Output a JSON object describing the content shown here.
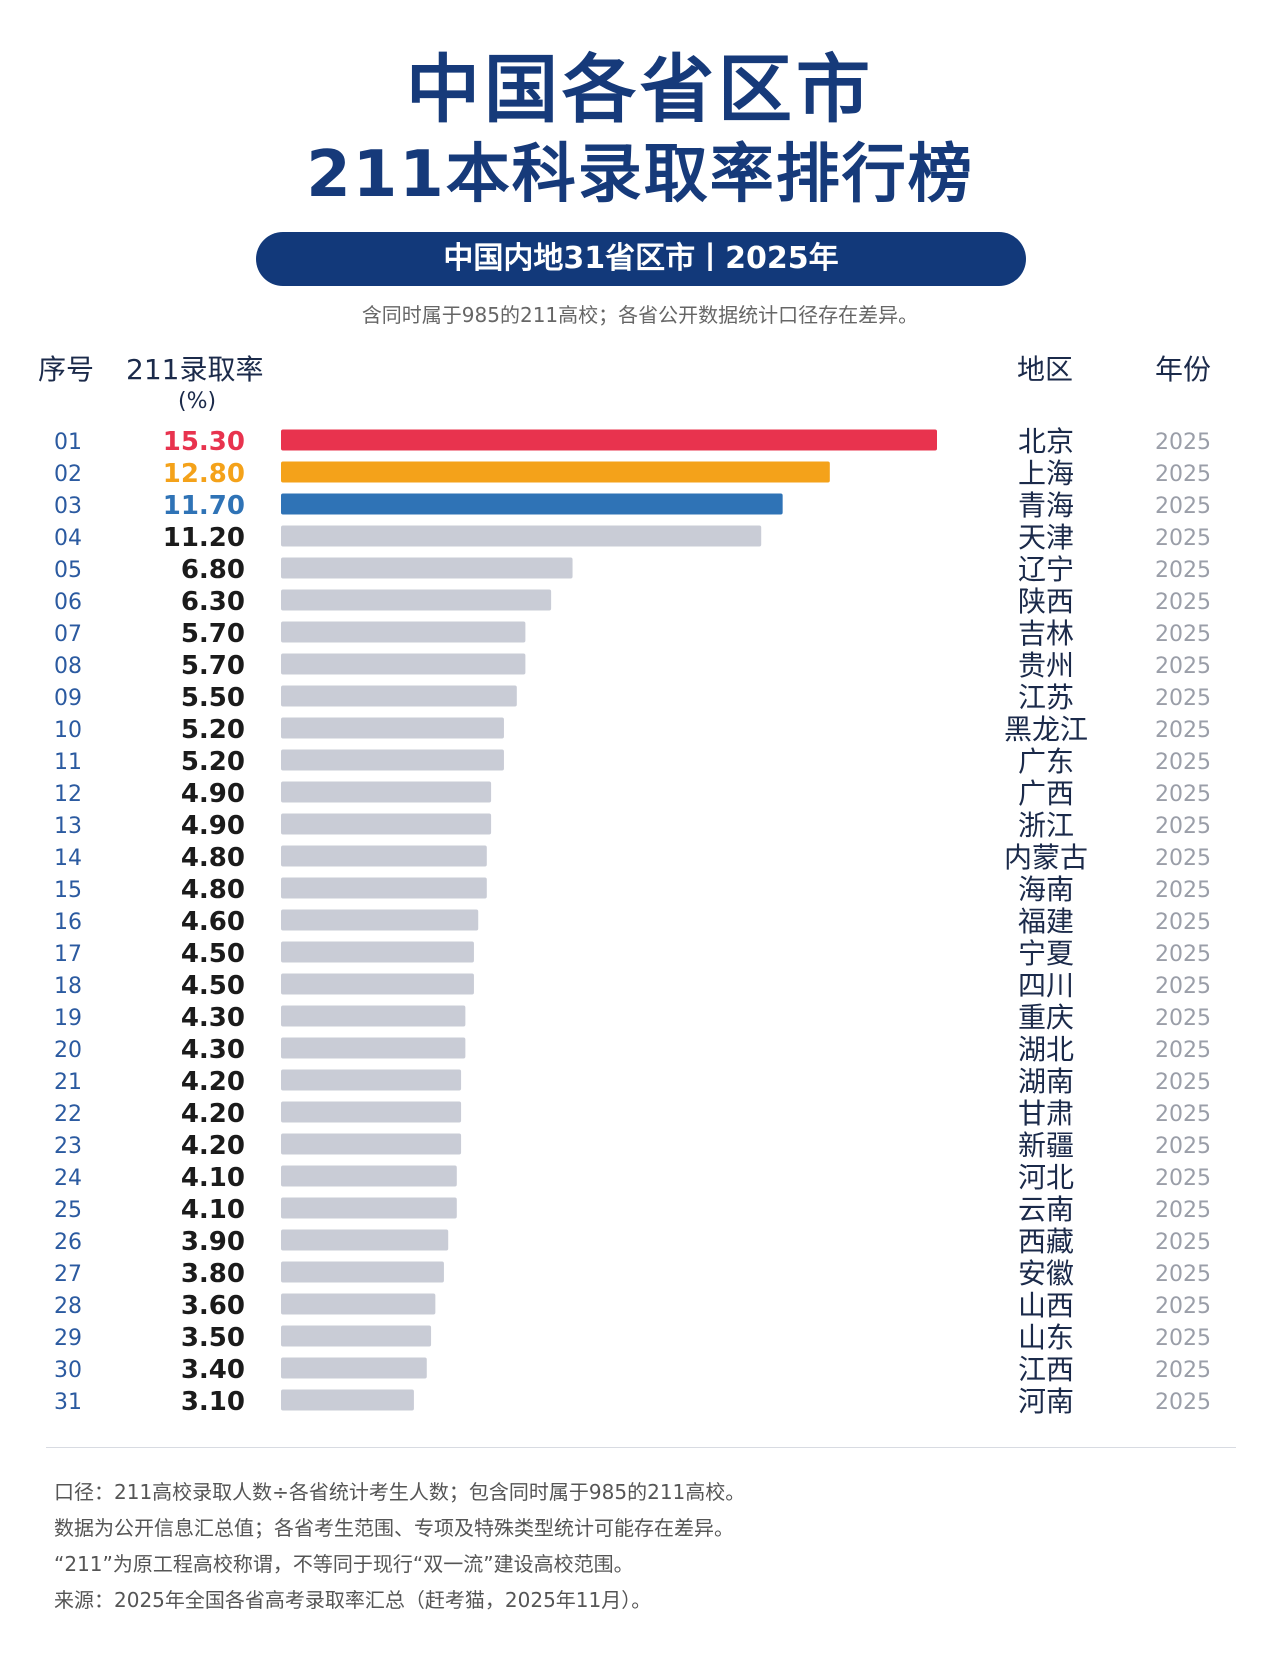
{
  "header": {
    "title_line1": "中国各省区市",
    "title_line2": "211本科录取率排行榜",
    "banner": "中国内地31省区市丨2025年",
    "subnote": "含同时属于985的211高校；各省公开数据统计口径存在差异。"
  },
  "columns": {
    "rank": "序号",
    "rate": "211录取率",
    "rate_unit": "(%)",
    "region": "地区",
    "year": "年份"
  },
  "colors": {
    "first": "#e8334e",
    "second": "#f4a21a",
    "third": "#2f73b6",
    "rest": "#c9ccd6",
    "rank_text": "#2b5aa0",
    "value_text": "#1b1b1b"
  },
  "chart_data": {
    "type": "bar",
    "orientation": "horizontal",
    "xlim": [
      0,
      15.3
    ],
    "ranks": [
      "01",
      "02",
      "03",
      "04",
      "05",
      "06",
      "07",
      "08",
      "09",
      "10",
      "11",
      "12",
      "13",
      "14",
      "15",
      "16",
      "17",
      "18",
      "19",
      "20",
      "21",
      "22",
      "23",
      "24",
      "25",
      "26",
      "27",
      "28",
      "29",
      "30",
      "31"
    ],
    "values": [
      15.3,
      12.8,
      11.7,
      11.2,
      6.8,
      6.3,
      5.7,
      5.7,
      5.5,
      5.2,
      5.2,
      4.9,
      4.9,
      4.8,
      4.8,
      4.6,
      4.5,
      4.5,
      4.3,
      4.3,
      4.2,
      4.2,
      4.2,
      4.1,
      4.1,
      3.9,
      3.8,
      3.6,
      3.5,
      3.4,
      3.1
    ],
    "value_labels": [
      "15.30",
      "12.80",
      "11.70",
      "11.20",
      "6.80",
      "6.30",
      "5.70",
      "5.70",
      "5.50",
      "5.20",
      "5.20",
      "4.90",
      "4.90",
      "4.80",
      "4.80",
      "4.60",
      "4.50",
      "4.50",
      "4.30",
      "4.30",
      "4.20",
      "4.20",
      "4.20",
      "4.10",
      "4.10",
      "3.90",
      "3.80",
      "3.60",
      "3.50",
      "3.40",
      "3.10"
    ],
    "regions": [
      "北京",
      "上海",
      "青海",
      "天津",
      "辽宁",
      "陕西",
      "吉林",
      "贵州",
      "江苏",
      "黑龙江",
      "广东",
      "广西",
      "浙江",
      "内蒙古",
      "海南",
      "福建",
      "宁夏",
      "四川",
      "重庆",
      "湖北",
      "湖南",
      "甘肃",
      "新疆",
      "河北",
      "云南",
      "西藏",
      "安徽",
      "山西",
      "山东",
      "江西",
      "河南"
    ],
    "years": [
      "2025",
      "2025",
      "2025",
      "2025",
      "2025",
      "2025",
      "2025",
      "2025",
      "2025",
      "2025",
      "2025",
      "2025",
      "2025",
      "2025",
      "2025",
      "2025",
      "2025",
      "2025",
      "2025",
      "2025",
      "2025",
      "2025",
      "2025",
      "2025",
      "2025",
      "2025",
      "2025",
      "2025",
      "2025",
      "2025",
      "2025"
    ]
  },
  "footer": {
    "line1": "口径：211高校录取人数÷各省统计考生人数；包含同时属于985的211高校。",
    "line2": "数据为公开信息汇总值；各省考生范围、专项及特殊类型统计可能存在差异。",
    "line3": "“211”为原工程高校称谓，不等同于现行“双一流”建设高校范围。",
    "line4": "来源：2025年全国各省高考录取率汇总（赶考猫，2025年11月）。"
  }
}
